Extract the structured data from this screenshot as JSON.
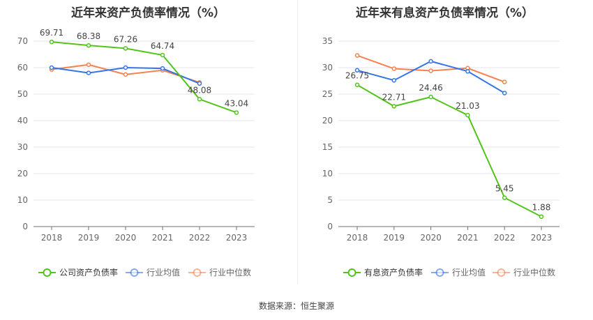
{
  "source": "数据来源：恒生聚源",
  "chart_data": [
    {
      "type": "line",
      "title": "近年来资产负债率情况（%）",
      "categories": [
        "2018",
        "2019",
        "2020",
        "2021",
        "2022",
        "2023"
      ],
      "ylim": [
        0,
        70
      ],
      "yticks": [
        0,
        10,
        20,
        30,
        40,
        50,
        60,
        70
      ],
      "grid": true,
      "legend_position": "bottom",
      "series": [
        {
          "name": "公司资产负债率",
          "color": "#52c41a",
          "values": [
            69.71,
            68.38,
            67.26,
            64.74,
            48.08,
            43.04
          ],
          "labels": [
            "69.71",
            "68.38",
            "67.26",
            "64.74",
            "48.08",
            "43.04"
          ]
        },
        {
          "name": "行业均值",
          "color": "#3574e8",
          "values": [
            60.0,
            58.0,
            60.0,
            59.7,
            54.0,
            null
          ]
        },
        {
          "name": "行业中位数",
          "color": "#f7814d",
          "values": [
            59.3,
            61.1,
            57.4,
            59.0,
            54.4,
            null
          ]
        }
      ]
    },
    {
      "type": "line",
      "title": "近年来有息资产负债率情况（%）",
      "categories": [
        "2018",
        "2019",
        "2020",
        "2021",
        "2022",
        "2023"
      ],
      "ylim": [
        0,
        35
      ],
      "yticks": [
        0,
        5,
        10,
        15,
        20,
        25,
        30,
        35
      ],
      "grid": true,
      "legend_position": "bottom",
      "series": [
        {
          "name": "有息资产负债率",
          "color": "#52c41a",
          "values": [
            26.75,
            22.71,
            24.46,
            21.03,
            5.45,
            1.88
          ],
          "labels": [
            "26.75",
            "22.71",
            "24.46",
            "21.03",
            "5.45",
            "1.88"
          ]
        },
        {
          "name": "行业均值",
          "color": "#3574e8",
          "values": [
            29.5,
            27.6,
            31.2,
            29.3,
            25.2,
            null
          ]
        },
        {
          "name": "行业中位数",
          "color": "#f7814d",
          "values": [
            32.3,
            29.8,
            29.4,
            29.9,
            27.3,
            null
          ]
        }
      ]
    }
  ]
}
